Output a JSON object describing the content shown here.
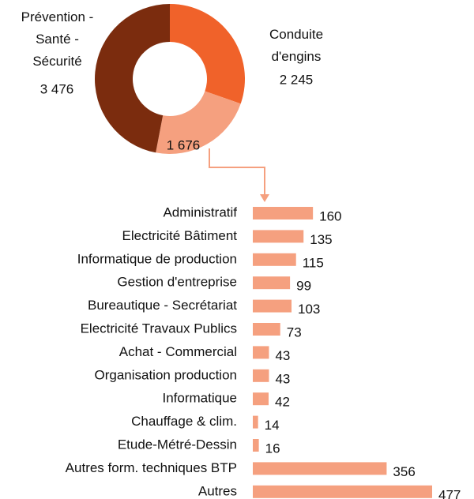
{
  "chart_data": [
    {
      "type": "pie",
      "categories": [
        "Prévention -\nSanté -\nSécurité",
        "Conduite\nd'engins",
        null
      ],
      "values": [
        3476,
        2245,
        1676
      ],
      "value_labels": [
        "3 476",
        "2 245",
        "1 676"
      ],
      "colors": [
        "#7b2c0e",
        "#f0622a",
        "#f5a07f"
      ]
    },
    {
      "type": "barh",
      "categories": [
        "Administratif",
        "Electricité Bâtiment",
        "Informatique de production",
        "Gestion d'entreprise",
        "Bureautique - Secrétariat",
        "Electricité Travaux Publics",
        "Achat - Commercial",
        "Organisation production",
        "Informatique",
        "Chauffage & clim.",
        "Etude-Métré-Dessin",
        "Autres form. techniques BTP",
        "Autres"
      ],
      "values": [
        160,
        135,
        115,
        99,
        103,
        73,
        43,
        43,
        42,
        14,
        16,
        356,
        477
      ],
      "color": "#f5a07f"
    }
  ]
}
